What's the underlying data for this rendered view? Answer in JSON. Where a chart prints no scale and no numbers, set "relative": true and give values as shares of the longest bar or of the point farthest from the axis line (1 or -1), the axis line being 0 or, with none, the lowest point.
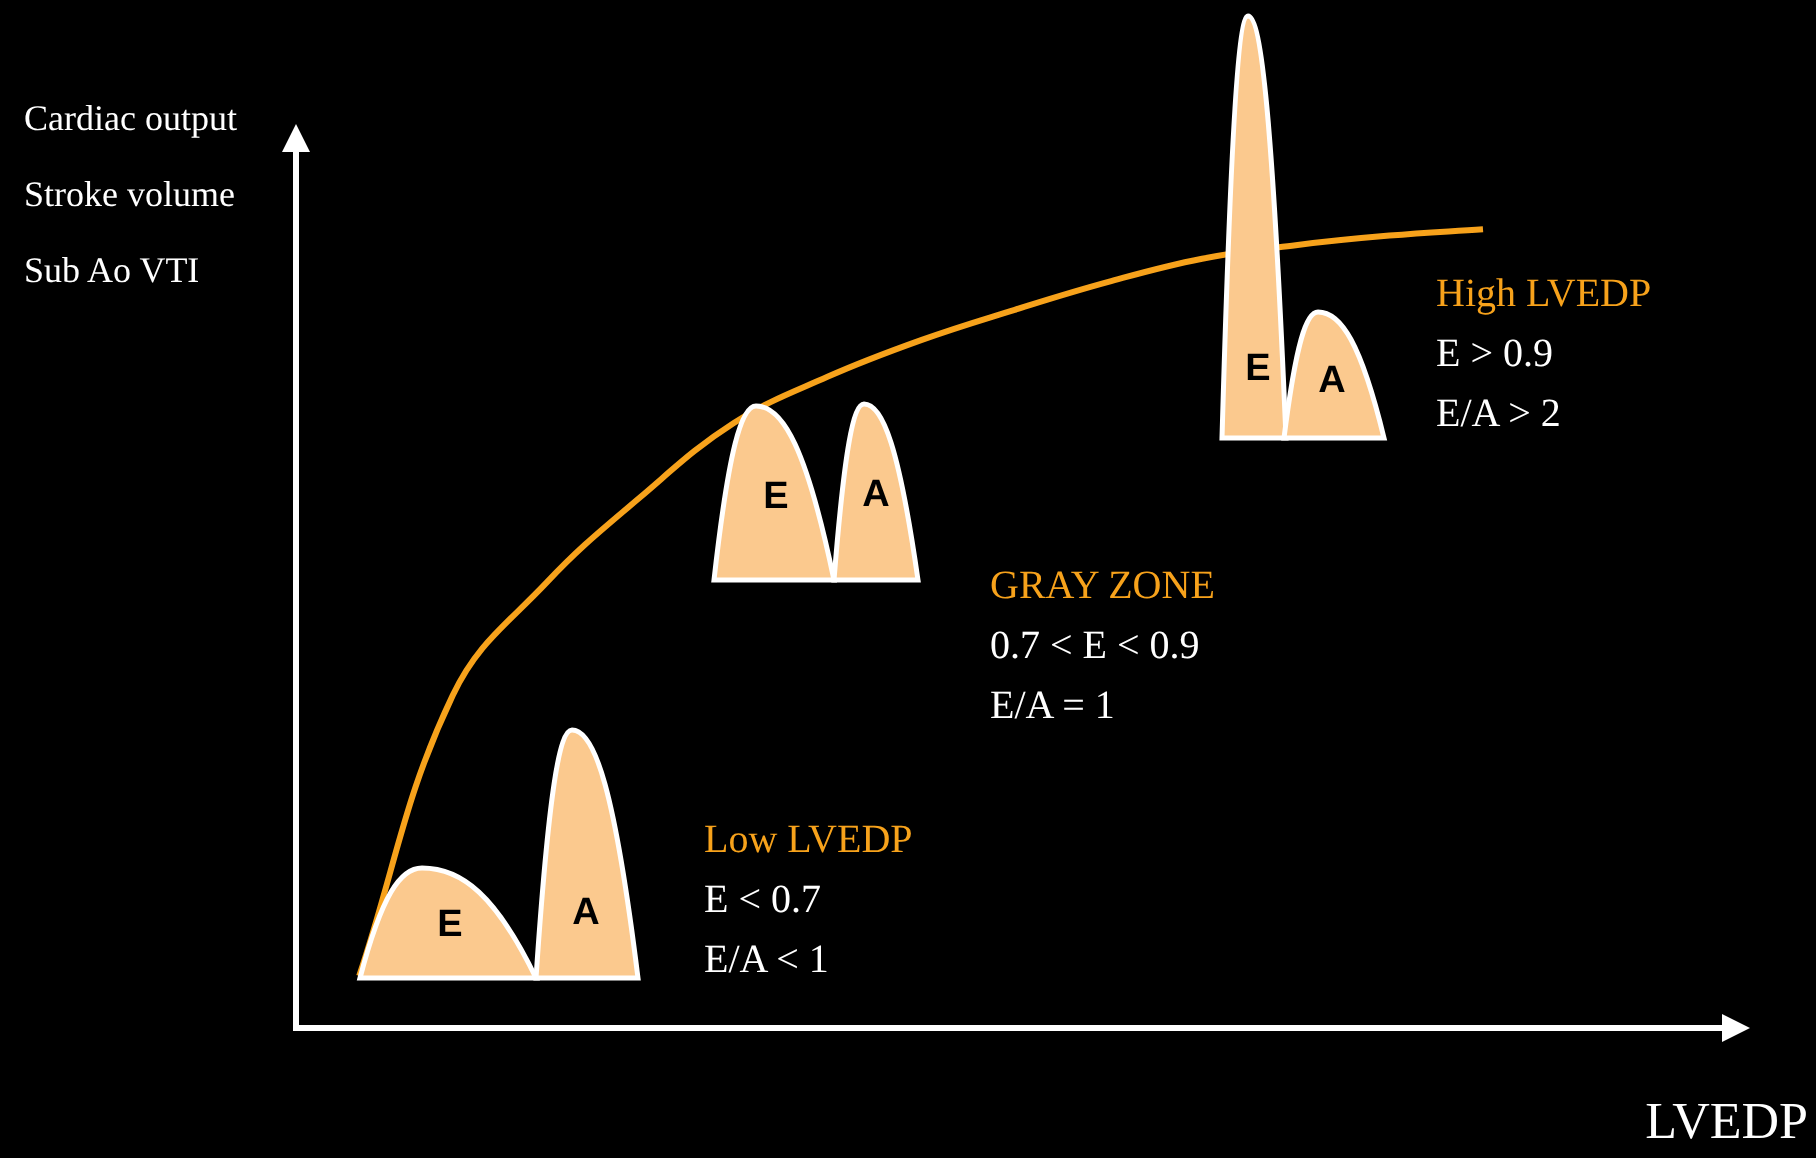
{
  "chart_data": {
    "type": "line",
    "relative": true,
    "categories": [
      null,
      null,
      null,
      null,
      null,
      null,
      null,
      null,
      null,
      null,
      null,
      null,
      null
    ],
    "values": [
      0.064,
      0.416,
      0.557,
      0.664,
      0.757,
      0.815,
      0.861,
      0.899,
      0.934,
      0.963,
      0.98,
      0.992,
      1
    ],
    "color": "#f7a21b",
    "marker": "none",
    "line_style": "solid",
    "grid": false,
    "legend": false,
    "tick_labels": false,
    "xlabel": "LVEDP",
    "ylabel": "Cardiac output\nStroke volume\nSub Ao VTI",
    "annotations": [
      "Low LVEDP\nE < 0.7\nE/A < 1",
      "GRAY ZONE\n0.7 < E < 0.9\nE/A = 1",
      "High LVEDP\nE > 0.9\nE/A > 2",
      "E",
      "A",
      "E",
      "A",
      "E",
      "A"
    ]
  }
}
